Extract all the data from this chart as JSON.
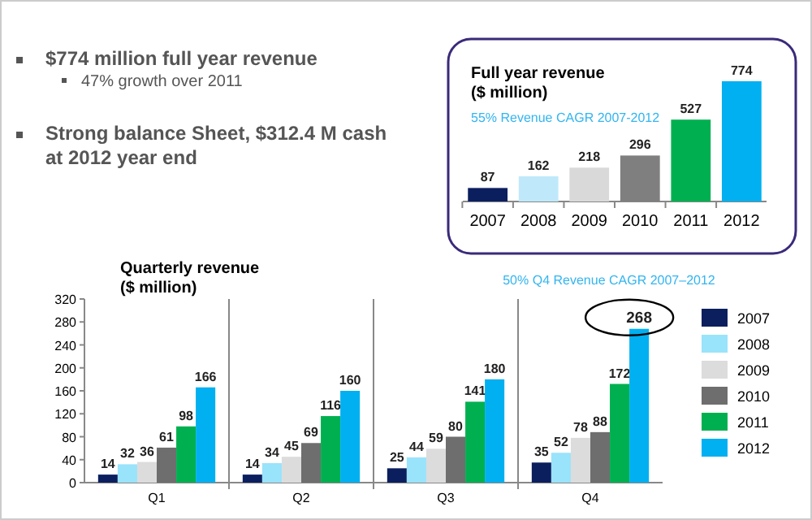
{
  "chart_data": [
    {
      "type": "other",
      "annotations": [
        "$774 million full year revenue",
        "47% growth over 2011",
        "Strong balance Sheet, $312.4 M cash at 2012 year end"
      ]
    },
    {
      "type": "bar",
      "title": "Full year revenue\n($ million)",
      "annotations": [
        "55% Revenue CAGR  2007-2012"
      ],
      "categories": [
        "2007",
        "2008",
        "2009",
        "2010",
        "2011",
        "2012"
      ],
      "values": [
        87,
        162,
        218,
        296,
        527,
        774
      ],
      "colors": [
        "#0b1f5e",
        "#bfe9fb",
        "#d9d9d9",
        "#7f7f7f",
        "#00b050",
        "#00b0f0"
      ],
      "data_labels": true
    },
    {
      "type": "bar",
      "title": "Quarterly revenue\n($ million)",
      "annotations": [
        "50% Q4 Revenue CAGR  2007–2012"
      ],
      "categories": [
        "Q1",
        "Q2",
        "Q3",
        "Q4"
      ],
      "series": [
        {
          "name": "2007",
          "color": "#0b1f5e",
          "values": [
            14,
            14,
            25,
            35
          ]
        },
        {
          "name": "2008",
          "color": "#99e3fb",
          "values": [
            32,
            34,
            44,
            52
          ]
        },
        {
          "name": "2009",
          "color": "#dcdcdc",
          "values": [
            36,
            45,
            59,
            78
          ]
        },
        {
          "name": "2010",
          "color": "#6e6e6e",
          "values": [
            61,
            69,
            80,
            88
          ]
        },
        {
          "name": "2011",
          "color": "#00b050",
          "values": [
            98,
            116,
            141,
            172
          ]
        },
        {
          "name": "2012",
          "color": "#00b0f0",
          "values": [
            166,
            160,
            180,
            268
          ]
        }
      ],
      "ylim": [
        0,
        320
      ],
      "yticks": [
        0,
        40,
        80,
        120,
        160,
        200,
        240,
        280,
        320
      ],
      "legend": "right",
      "data_labels": true
    }
  ]
}
